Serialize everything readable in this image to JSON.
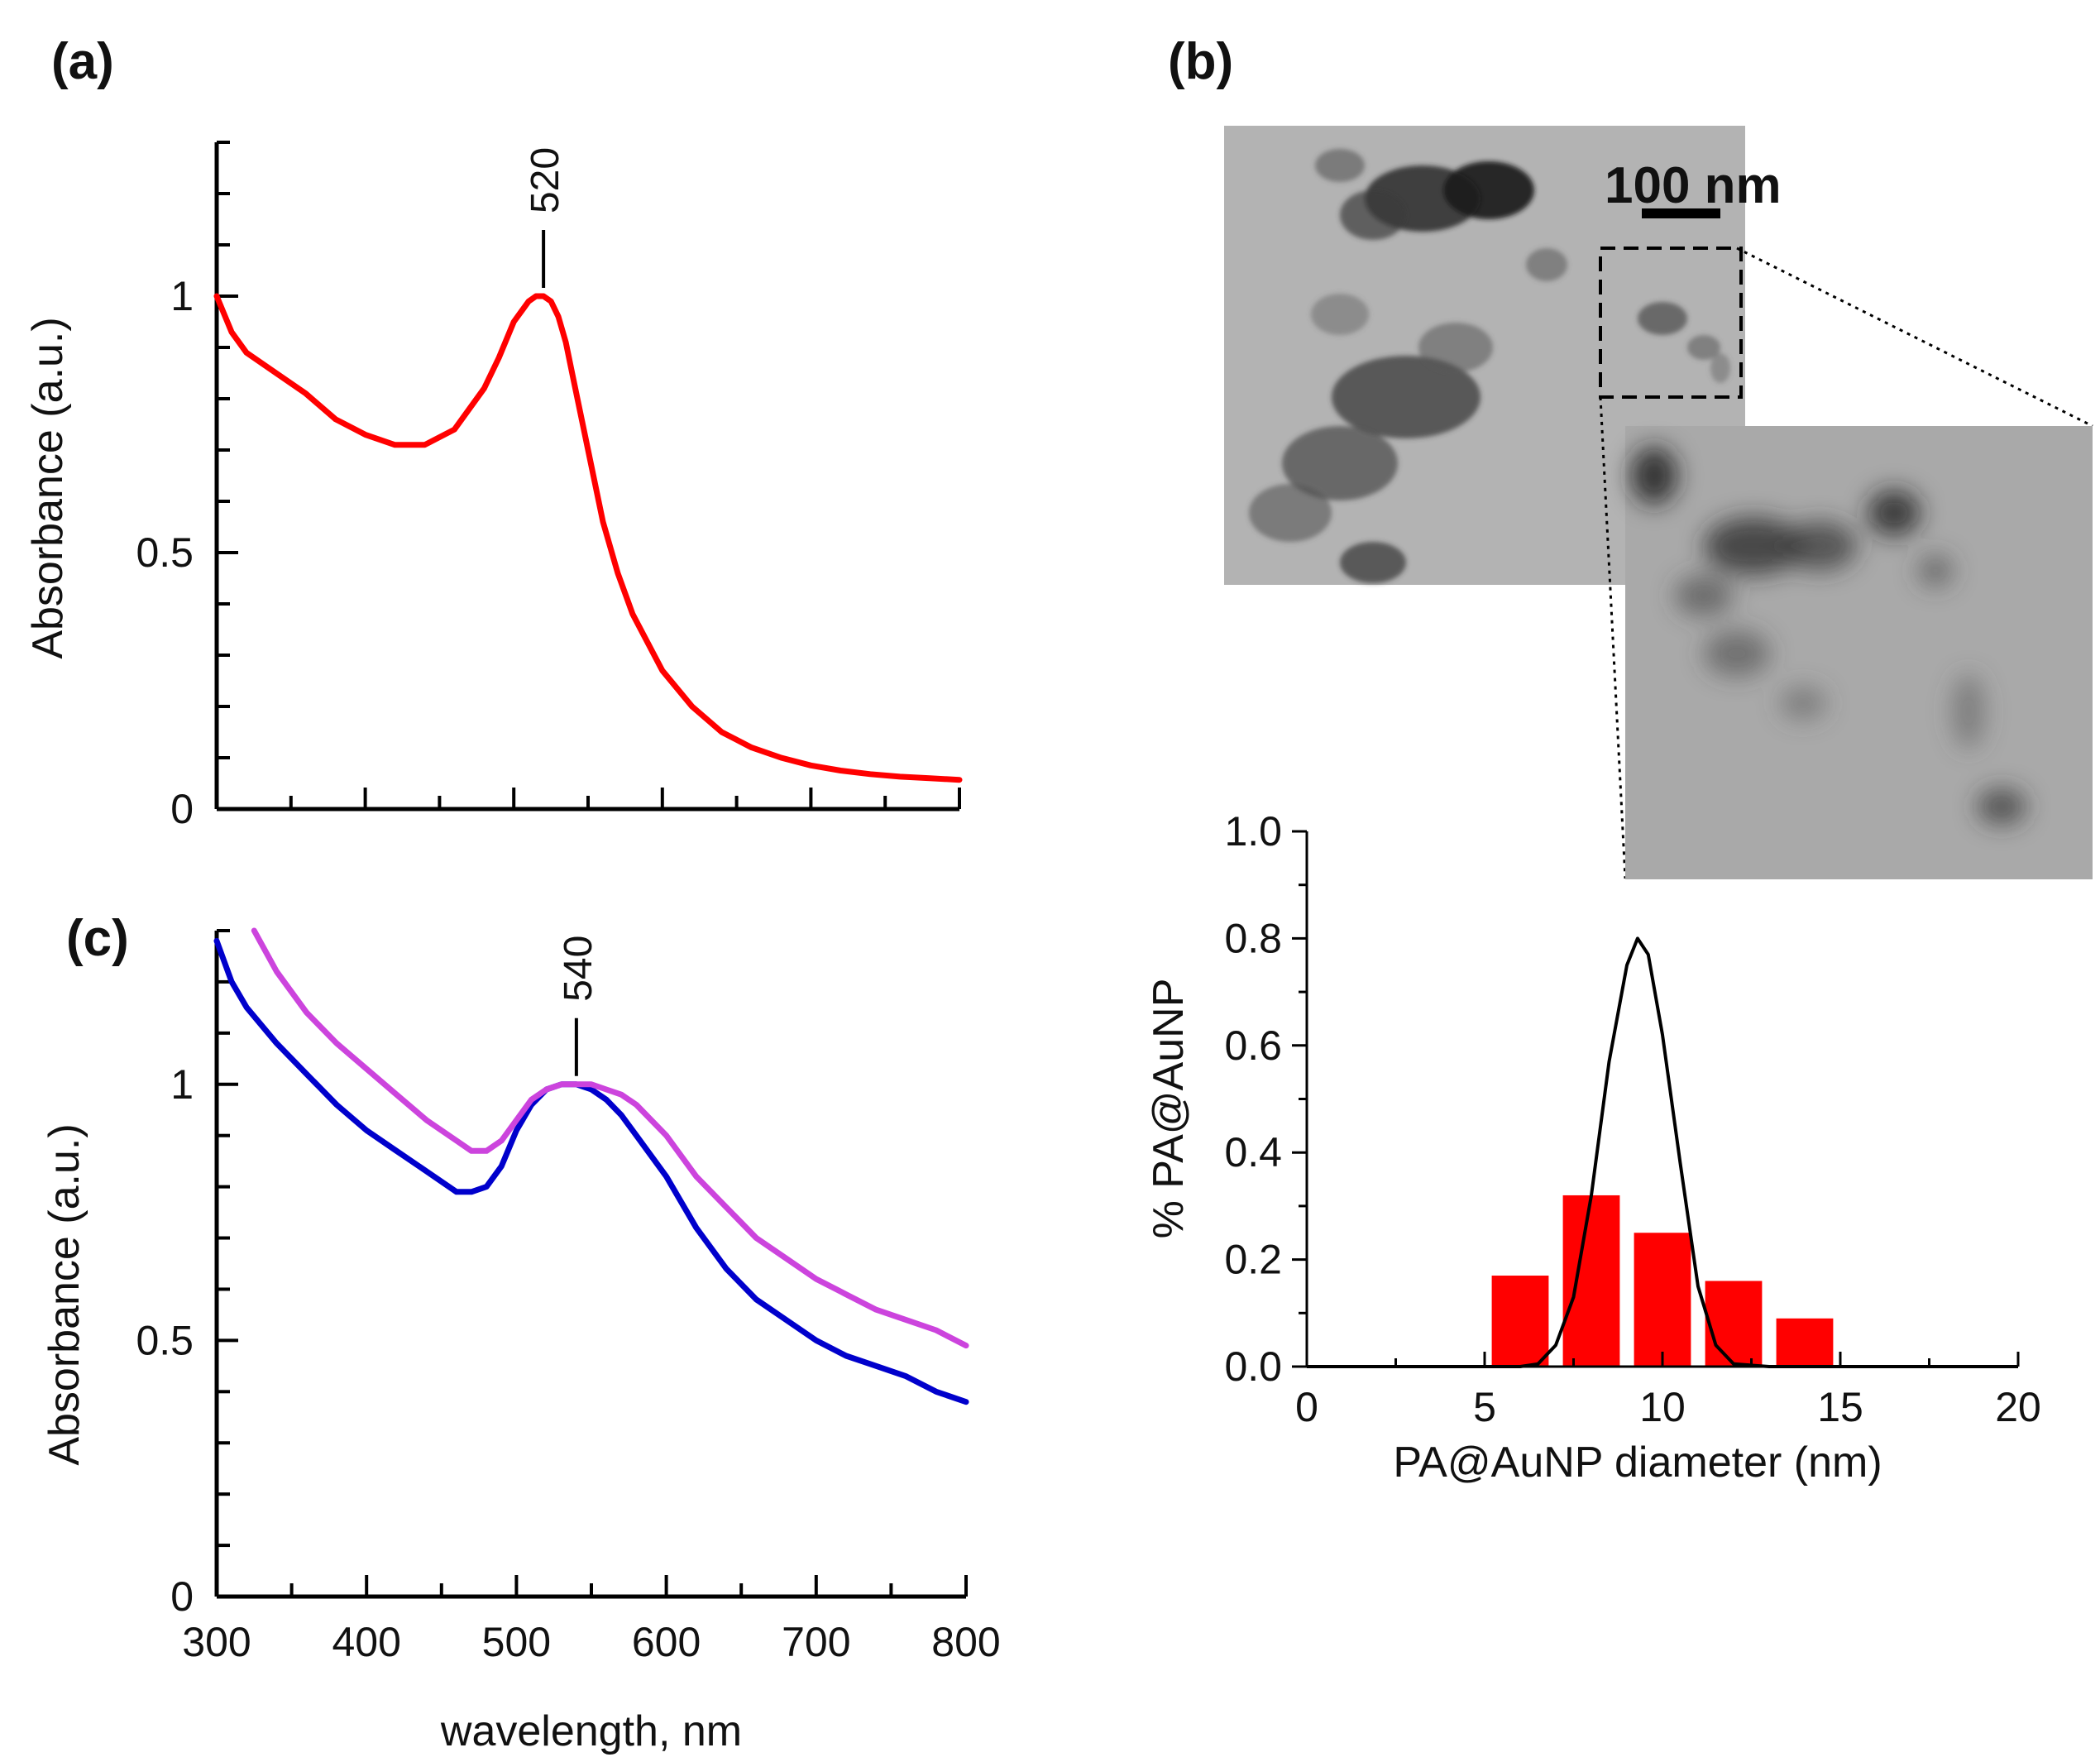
{
  "panel_labels": {
    "a": "(a)",
    "b": "(b)",
    "c": "(c)"
  },
  "scale_bar_label": "100 nm",
  "colors": {
    "red": "#ff0000",
    "blue": "#0000cc",
    "magenta": "#cc44dd",
    "black": "#000000"
  },
  "chart_data": [
    {
      "id": "a",
      "type": "line",
      "title": "",
      "xlabel": "",
      "ylabel": "Absorbance (a.u.)",
      "xlim": [
        300,
        800
      ],
      "ylim": [
        0,
        1.3
      ],
      "yticks": [
        0,
        0.5,
        1
      ],
      "ytick_labels": [
        "0",
        "0.5",
        "1"
      ],
      "xticks": [
        300,
        400,
        500,
        600,
        700,
        800
      ],
      "xtick_labels": [],
      "annotation": {
        "text": "520",
        "x": 520,
        "y": 1.0
      },
      "series": [
        {
          "name": "PA@AuNP",
          "color": "#ff0000",
          "x": [
            300,
            310,
            320,
            340,
            360,
            380,
            400,
            420,
            440,
            460,
            480,
            490,
            500,
            510,
            515,
            520,
            525,
            530,
            535,
            540,
            550,
            560,
            570,
            580,
            600,
            620,
            640,
            660,
            680,
            700,
            720,
            740,
            760,
            780,
            800
          ],
          "y": [
            1.0,
            0.93,
            0.89,
            0.85,
            0.81,
            0.76,
            0.73,
            0.71,
            0.71,
            0.74,
            0.82,
            0.88,
            0.95,
            0.99,
            1.0,
            1.0,
            0.99,
            0.96,
            0.91,
            0.84,
            0.7,
            0.56,
            0.46,
            0.38,
            0.27,
            0.2,
            0.15,
            0.12,
            0.1,
            0.085,
            0.075,
            0.068,
            0.063,
            0.06,
            0.057
          ]
        }
      ]
    },
    {
      "id": "c",
      "type": "line",
      "title": "",
      "xlabel": "wavelength, nm",
      "ylabel": "Absorbance (a.u.)",
      "xlim": [
        300,
        800
      ],
      "ylim": [
        0,
        1.3
      ],
      "yticks": [
        0,
        0.5,
        1
      ],
      "ytick_labels": [
        "0",
        "0.5",
        "1"
      ],
      "xticks": [
        300,
        400,
        500,
        600,
        700,
        800
      ],
      "xtick_labels": [
        "300",
        "400",
        "500",
        "600",
        "700",
        "800"
      ],
      "annotation": {
        "text": "540",
        "x": 540,
        "y": 1.0
      },
      "series": [
        {
          "name": "blue",
          "color": "#0000cc",
          "x": [
            300,
            310,
            320,
            340,
            360,
            380,
            400,
            420,
            440,
            460,
            470,
            480,
            490,
            500,
            510,
            520,
            530,
            540,
            550,
            560,
            570,
            580,
            600,
            620,
            640,
            660,
            680,
            700,
            720,
            740,
            760,
            780,
            800
          ],
          "y": [
            1.28,
            1.2,
            1.15,
            1.08,
            1.02,
            0.96,
            0.91,
            0.87,
            0.83,
            0.79,
            0.79,
            0.8,
            0.84,
            0.91,
            0.96,
            0.99,
            1.0,
            1.0,
            0.99,
            0.97,
            0.94,
            0.9,
            0.82,
            0.72,
            0.64,
            0.58,
            0.54,
            0.5,
            0.47,
            0.45,
            0.43,
            0.4,
            0.38
          ]
        },
        {
          "name": "magenta",
          "color": "#cc44dd",
          "x": [
            325,
            340,
            360,
            380,
            400,
            420,
            440,
            460,
            470,
            480,
            490,
            500,
            510,
            520,
            530,
            540,
            550,
            560,
            570,
            580,
            600,
            620,
            640,
            660,
            680,
            700,
            720,
            740,
            760,
            780,
            800
          ],
          "y": [
            1.3,
            1.22,
            1.14,
            1.08,
            1.03,
            0.98,
            0.93,
            0.89,
            0.87,
            0.87,
            0.89,
            0.93,
            0.97,
            0.99,
            1.0,
            1.0,
            1.0,
            0.99,
            0.98,
            0.96,
            0.9,
            0.82,
            0.76,
            0.7,
            0.66,
            0.62,
            0.59,
            0.56,
            0.54,
            0.52,
            0.49
          ]
        }
      ]
    },
    {
      "id": "b-histogram",
      "type": "bar",
      "title": "",
      "xlabel": "PA@AuNP diameter (nm)",
      "ylabel": "% PA@AuNP",
      "xlim": [
        0,
        20
      ],
      "ylim": [
        0,
        1.0
      ],
      "xticks": [
        0,
        5,
        10,
        15,
        20
      ],
      "xtick_labels": [
        "0",
        "5",
        "10",
        "15",
        "20"
      ],
      "yticks": [
        0.0,
        0.2,
        0.4,
        0.6,
        0.8,
        1.0
      ],
      "ytick_labels": [
        "0.0",
        "0.2",
        "0.4",
        "0.6",
        "0.8",
        "1.0"
      ],
      "bars": {
        "color": "#ff0000",
        "bin_centers": [
          6,
          8,
          10,
          12,
          14
        ],
        "bin_width": 1.6,
        "values": [
          0.17,
          0.32,
          0.25,
          0.16,
          0.09
        ]
      },
      "fit": {
        "name": "Gaussian fit",
        "color": "#000000",
        "x": [
          0,
          6,
          6.5,
          7,
          7.5,
          8,
          8.5,
          9,
          9.3,
          9.6,
          10,
          10.5,
          11,
          11.5,
          12,
          13,
          20
        ],
        "y": [
          0,
          0,
          0.005,
          0.04,
          0.13,
          0.32,
          0.57,
          0.75,
          0.8,
          0.77,
          0.62,
          0.38,
          0.15,
          0.04,
          0.005,
          0,
          0
        ]
      }
    }
  ]
}
